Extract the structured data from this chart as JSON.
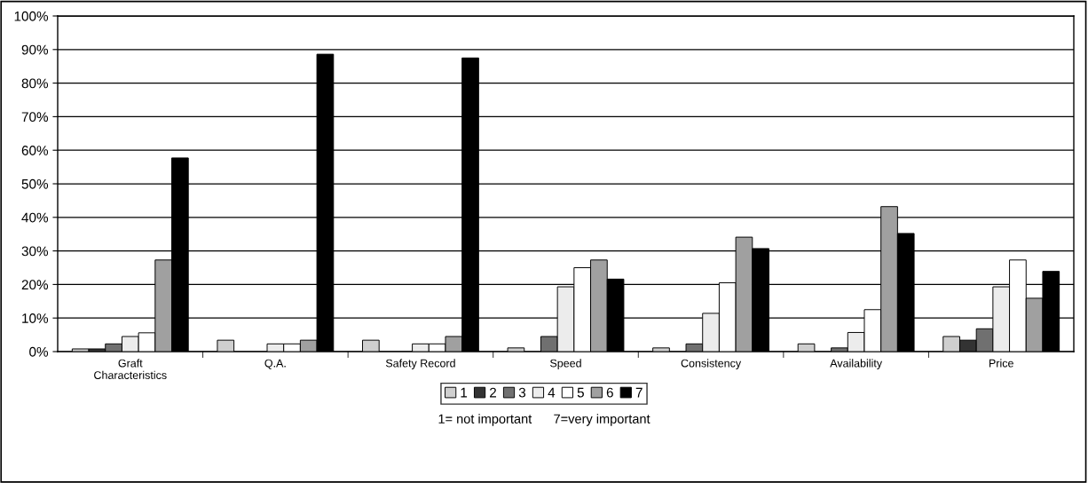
{
  "chart_data": {
    "type": "bar",
    "categories": [
      "Graft\nCharacteristics",
      "Q.A.",
      "Safety Record",
      "Speed",
      "Consistency",
      "Availability",
      "Price"
    ],
    "series": [
      {
        "name": "1",
        "color": "#cfcfcf",
        "values": [
          0.8,
          3.4,
          3.4,
          1.1,
          1.1,
          2.3,
          4.5
        ]
      },
      {
        "name": "2",
        "color": "#333333",
        "values": [
          0.8,
          null,
          null,
          null,
          null,
          null,
          3.4
        ]
      },
      {
        "name": "3",
        "color": "#707070",
        "values": [
          2.3,
          null,
          null,
          4.5,
          2.3,
          1.1,
          6.8
        ]
      },
      {
        "name": "4",
        "color": "#ececec",
        "values": [
          4.5,
          2.3,
          2.3,
          19.3,
          11.4,
          5.7,
          19.3
        ]
      },
      {
        "name": "5",
        "color": "#ffffff",
        "values": [
          5.6,
          2.3,
          2.3,
          25.0,
          20.5,
          12.5,
          27.3
        ]
      },
      {
        "name": "6",
        "color": "#a0a0a0",
        "values": [
          27.3,
          3.4,
          4.5,
          27.3,
          34.1,
          43.2,
          15.9
        ]
      },
      {
        "name": "7",
        "color": "#000000",
        "values": [
          57.7,
          88.6,
          87.5,
          21.6,
          30.7,
          35.2,
          23.9
        ]
      }
    ],
    "ylim": [
      0,
      100
    ],
    "yticks": [
      {
        "value": 0,
        "label": "0%"
      },
      {
        "value": 10,
        "label": "10%"
      },
      {
        "value": 20,
        "label": "20%"
      },
      {
        "value": 30,
        "label": "30%"
      },
      {
        "value": 40,
        "label": "40%"
      },
      {
        "value": 50,
        "label": "50%"
      },
      {
        "value": 60,
        "label": "60%"
      },
      {
        "value": 70,
        "label": "70%"
      },
      {
        "value": 80,
        "label": "80%"
      },
      {
        "value": 90,
        "label": "90%"
      },
      {
        "value": 100,
        "label": "100%"
      }
    ],
    "grid": "y",
    "legend": "bottom",
    "annotations": [
      "1= not important      7=very important"
    ]
  }
}
